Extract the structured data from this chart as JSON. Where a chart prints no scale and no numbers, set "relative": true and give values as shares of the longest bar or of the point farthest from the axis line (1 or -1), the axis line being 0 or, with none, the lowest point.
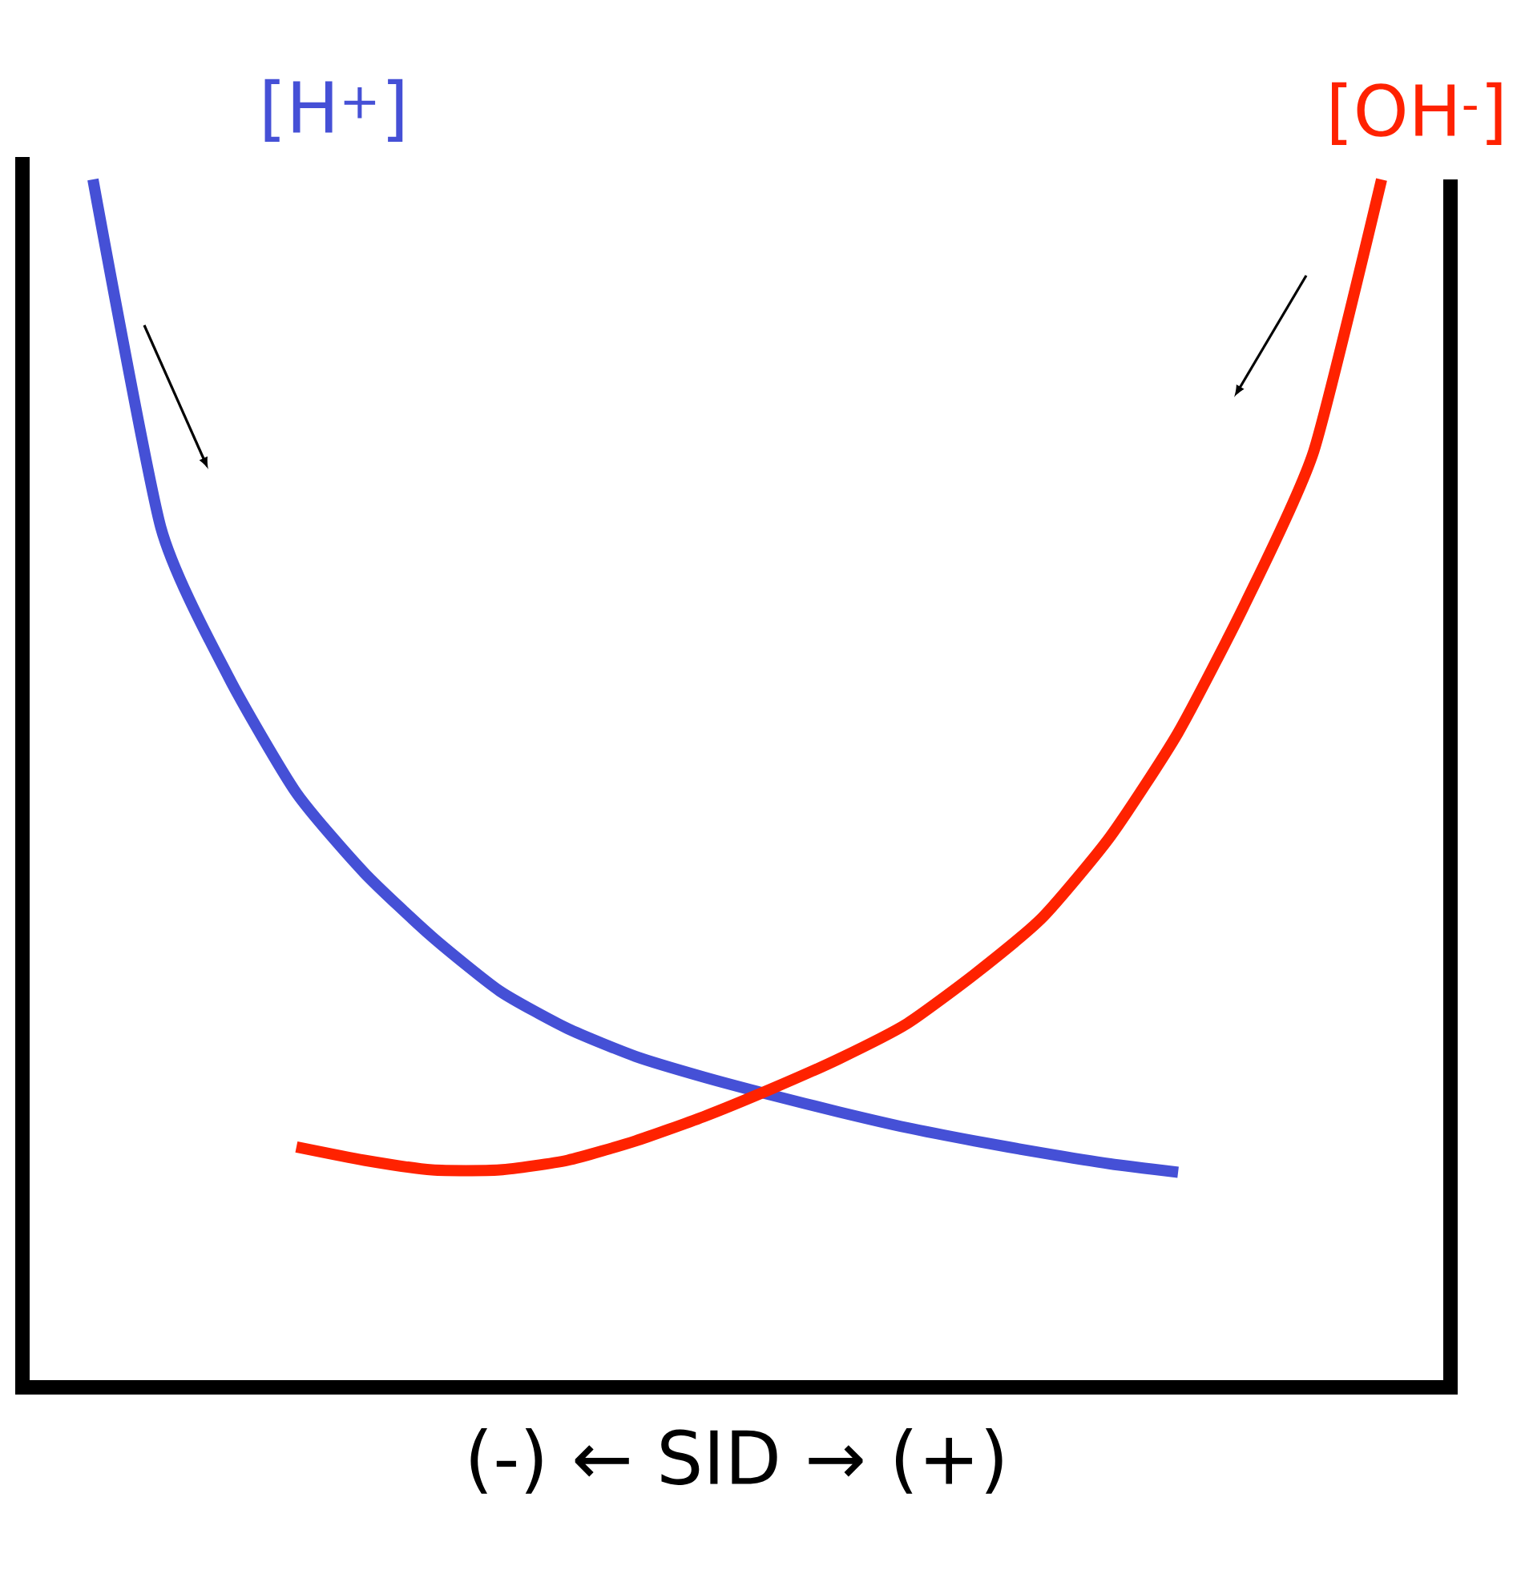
{
  "chart_data": {
    "type": "line",
    "relative": true,
    "xlabel": "(-) ← SID → (+)",
    "marker": "none",
    "line_style": "solid",
    "categories": [
      null,
      null,
      null,
      null,
      null,
      null,
      null,
      null,
      null,
      null,
      null,
      null,
      null,
      null,
      null,
      null,
      null,
      null,
      null,
      null
    ],
    "series": [
      {
        "name": "[H$^{+}$]",
        "color": "#4550d6",
        "values": [
          1.0,
          0.712,
          0.588,
          0.492,
          0.426,
          0.373,
          0.328,
          0.297,
          0.274,
          0.257,
          0.242,
          0.228,
          0.215,
          0.204,
          0.194,
          0.185,
          0.178,
          null,
          null,
          null
        ]
      },
      {
        "name": "[OH$^{-}$]",
        "color": "#ff2200",
        "values": [
          null,
          null,
          null,
          0.199,
          0.188,
          0.18,
          0.18,
          0.188,
          0.204,
          0.224,
          0.247,
          0.272,
          0.301,
          0.342,
          0.389,
          0.456,
          0.542,
          0.65,
          0.775,
          1.0
        ]
      }
    ]
  }
}
